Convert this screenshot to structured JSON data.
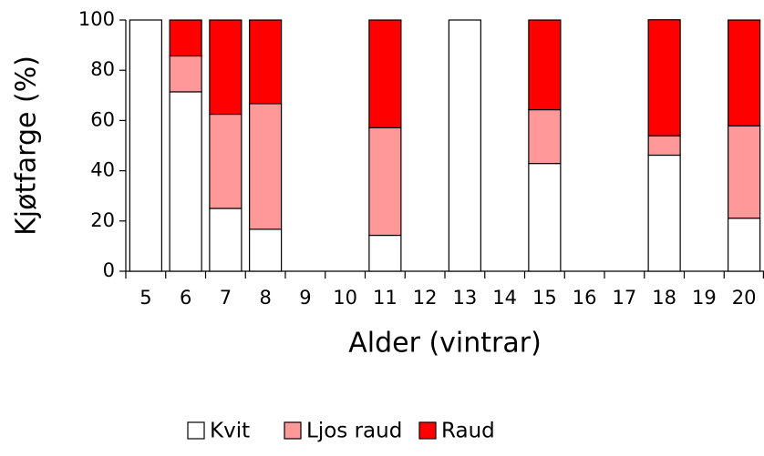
{
  "chart_data": {
    "type": "stacked_bar",
    "xlabel": "Alder  (vintrar)",
    "ylabel": "Kjøtfarge (%)",
    "categories": [
      "5",
      "6",
      "7",
      "8",
      "9",
      "10",
      "11",
      "12",
      "13",
      "14",
      "15",
      "16",
      "17",
      "18",
      "19",
      "20"
    ],
    "series": [
      {
        "name": "Kvit",
        "color": "#ffffff",
        "values": [
          100,
          71.4,
          25,
          16.7,
          null,
          null,
          14.3,
          null,
          100,
          null,
          42.9,
          null,
          null,
          46.2,
          null,
          21.1
        ]
      },
      {
        "name": "Ljos raud",
        "color": "#ff9999",
        "values": [
          0,
          14.3,
          37.5,
          50,
          null,
          null,
          42.8,
          null,
          0,
          null,
          21.4,
          null,
          null,
          7.7,
          null,
          36.8
        ]
      },
      {
        "name": "Raud",
        "color": "#ff0000",
        "values": [
          0,
          14.3,
          37.5,
          33.3,
          null,
          null,
          42.9,
          null,
          0,
          null,
          35.7,
          null,
          null,
          46.2,
          null,
          42.1
        ]
      }
    ],
    "ylim": [
      0,
      100
    ],
    "yticks": [
      0,
      20,
      40,
      60,
      80,
      100
    ]
  }
}
